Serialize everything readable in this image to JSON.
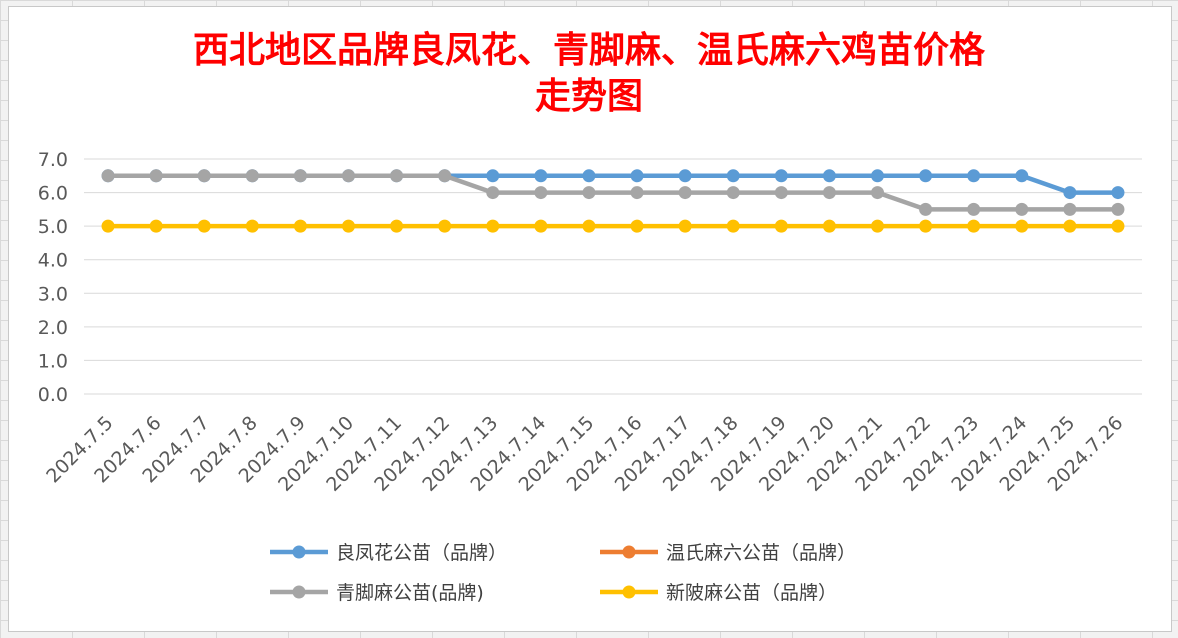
{
  "chart_data": {
    "type": "line",
    "title_lines": [
      "西北地区品牌良凤花、青脚麻、温氏麻六鸡苗价格",
      "走势图"
    ],
    "xlabel": "",
    "ylabel": "",
    "ylim": [
      0,
      7
    ],
    "yticks": [
      "0.0",
      "1.0",
      "2.0",
      "3.0",
      "4.0",
      "5.0",
      "6.0",
      "7.0"
    ],
    "grid": true,
    "legend_position": "bottom",
    "categories": [
      "2024.7.5",
      "2024.7.6",
      "2024.7.7",
      "2024.7.8",
      "2024.7.9",
      "2024.7.10",
      "2024.7.11",
      "2024.7.12",
      "2024.7.13",
      "2024.7.14",
      "2024.7.15",
      "2024.7.16",
      "2024.7.17",
      "2024.7.18",
      "2024.7.19",
      "2024.7.20",
      "2024.7.21",
      "2024.7.22",
      "2024.7.23",
      "2024.7.24",
      "2024.7.25",
      "2024.7.26"
    ],
    "series": [
      {
        "name": "良凤花公苗（品牌）",
        "color": "#5b9bd5",
        "values": [
          6.5,
          6.5,
          6.5,
          6.5,
          6.5,
          6.5,
          6.5,
          6.5,
          6.5,
          6.5,
          6.5,
          6.5,
          6.5,
          6.5,
          6.5,
          6.5,
          6.5,
          6.5,
          6.5,
          6.5,
          6.0,
          6.0
        ]
      },
      {
        "name": "温氏麻六公苗（品牌）",
        "color": "#ed7d31",
        "values": [
          null,
          null,
          null,
          null,
          null,
          null,
          null,
          null,
          null,
          null,
          null,
          null,
          null,
          null,
          null,
          null,
          null,
          null,
          null,
          null,
          null,
          null
        ]
      },
      {
        "name": "青脚麻公苗(品牌)",
        "color": "#a5a5a5",
        "values": [
          6.5,
          6.5,
          6.5,
          6.5,
          6.5,
          6.5,
          6.5,
          6.5,
          6.0,
          6.0,
          6.0,
          6.0,
          6.0,
          6.0,
          6.0,
          6.0,
          6.0,
          5.5,
          5.5,
          5.5,
          5.5,
          5.5
        ]
      },
      {
        "name": "新陂麻公苗（品牌）",
        "color": "#ffc000",
        "values": [
          5.0,
          5.0,
          5.0,
          5.0,
          5.0,
          5.0,
          5.0,
          5.0,
          5.0,
          5.0,
          5.0,
          5.0,
          5.0,
          5.0,
          5.0,
          5.0,
          5.0,
          5.0,
          5.0,
          5.0,
          5.0,
          5.0
        ]
      }
    ]
  }
}
